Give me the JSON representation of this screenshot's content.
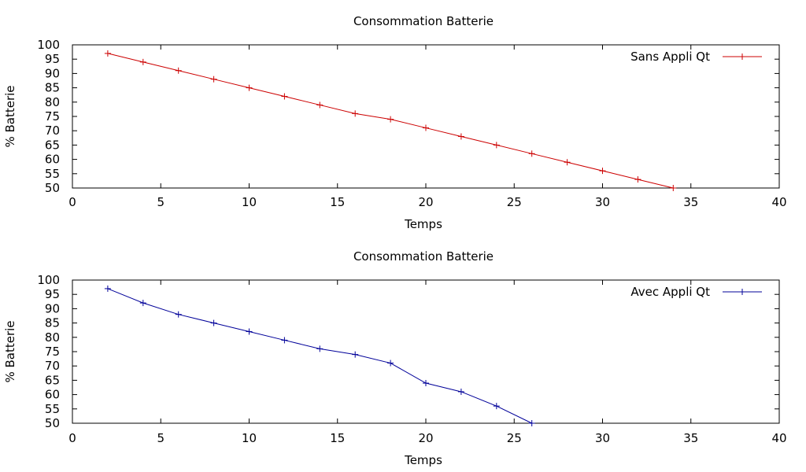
{
  "chart_data": [
    {
      "type": "line",
      "title": "Consommation Batterie",
      "xlabel": "Temps",
      "ylabel": "% Batterie",
      "xlim": [
        0,
        40
      ],
      "ylim": [
        50,
        100
      ],
      "xticks": [
        0,
        5,
        10,
        15,
        20,
        25,
        30,
        35,
        40
      ],
      "yticks": [
        50,
        55,
        60,
        65,
        70,
        75,
        80,
        85,
        90,
        95,
        100
      ],
      "grid": false,
      "legend": "top-right",
      "series": [
        {
          "name": "Sans Appli Qt",
          "color": "#cc0000",
          "marker": "plus",
          "x": [
            2,
            4,
            6,
            8,
            10,
            12,
            14,
            16,
            18,
            20,
            22,
            24,
            26,
            28,
            30,
            32,
            34
          ],
          "y": [
            97,
            94,
            91,
            88,
            85,
            82,
            79,
            76,
            74,
            71,
            68,
            65,
            62,
            59,
            56,
            53,
            50
          ]
        }
      ]
    },
    {
      "type": "line",
      "title": "Consommation Batterie",
      "xlabel": "Temps",
      "ylabel": "% Batterie",
      "xlim": [
        0,
        40
      ],
      "ylim": [
        50,
        100
      ],
      "xticks": [
        0,
        5,
        10,
        15,
        20,
        25,
        30,
        35,
        40
      ],
      "yticks": [
        50,
        55,
        60,
        65,
        70,
        75,
        80,
        85,
        90,
        95,
        100
      ],
      "grid": false,
      "legend": "top-right",
      "series": [
        {
          "name": "Avec Appli Qt",
          "color": "#000099",
          "marker": "plus",
          "x": [
            2,
            4,
            6,
            8,
            10,
            12,
            14,
            16,
            18,
            20,
            22,
            24,
            26
          ],
          "y": [
            97,
            92,
            88,
            85,
            82,
            79,
            76,
            74,
            71,
            64,
            61,
            56,
            50
          ]
        }
      ]
    }
  ]
}
